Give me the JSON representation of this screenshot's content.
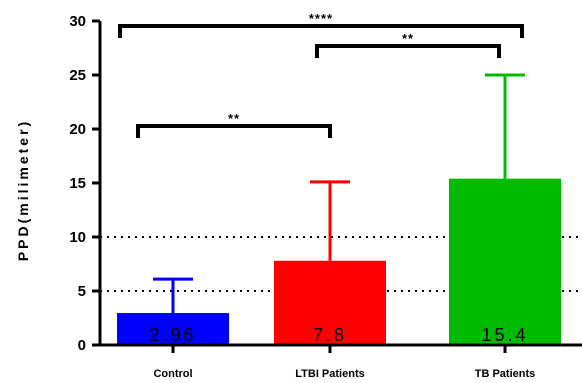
{
  "chart_data": {
    "type": "bar",
    "ylabel": "PPD(milimeter)",
    "ylim": [
      0,
      30
    ],
    "yticks": [
      "0",
      "5",
      "10",
      "15",
      "20",
      "25",
      "30"
    ],
    "reference_lines": [
      5,
      10
    ],
    "categories": [
      "Control",
      "LTBI Patients",
      "TB Patients"
    ],
    "values": [
      2.96,
      7.8,
      15.4
    ],
    "value_labels": [
      "2.96",
      "7.8",
      "15.4"
    ],
    "error_upper": [
      6.1,
      15.1,
      25.0
    ],
    "colors": [
      "#0000ff",
      "#ff0000",
      "#00bb00"
    ],
    "significance": [
      {
        "from": 0,
        "to": 1,
        "label": "**"
      },
      {
        "from": 1,
        "to": 2,
        "label": "**"
      },
      {
        "from": 0,
        "to": 2,
        "label": "****"
      }
    ],
    "grid": false
  }
}
